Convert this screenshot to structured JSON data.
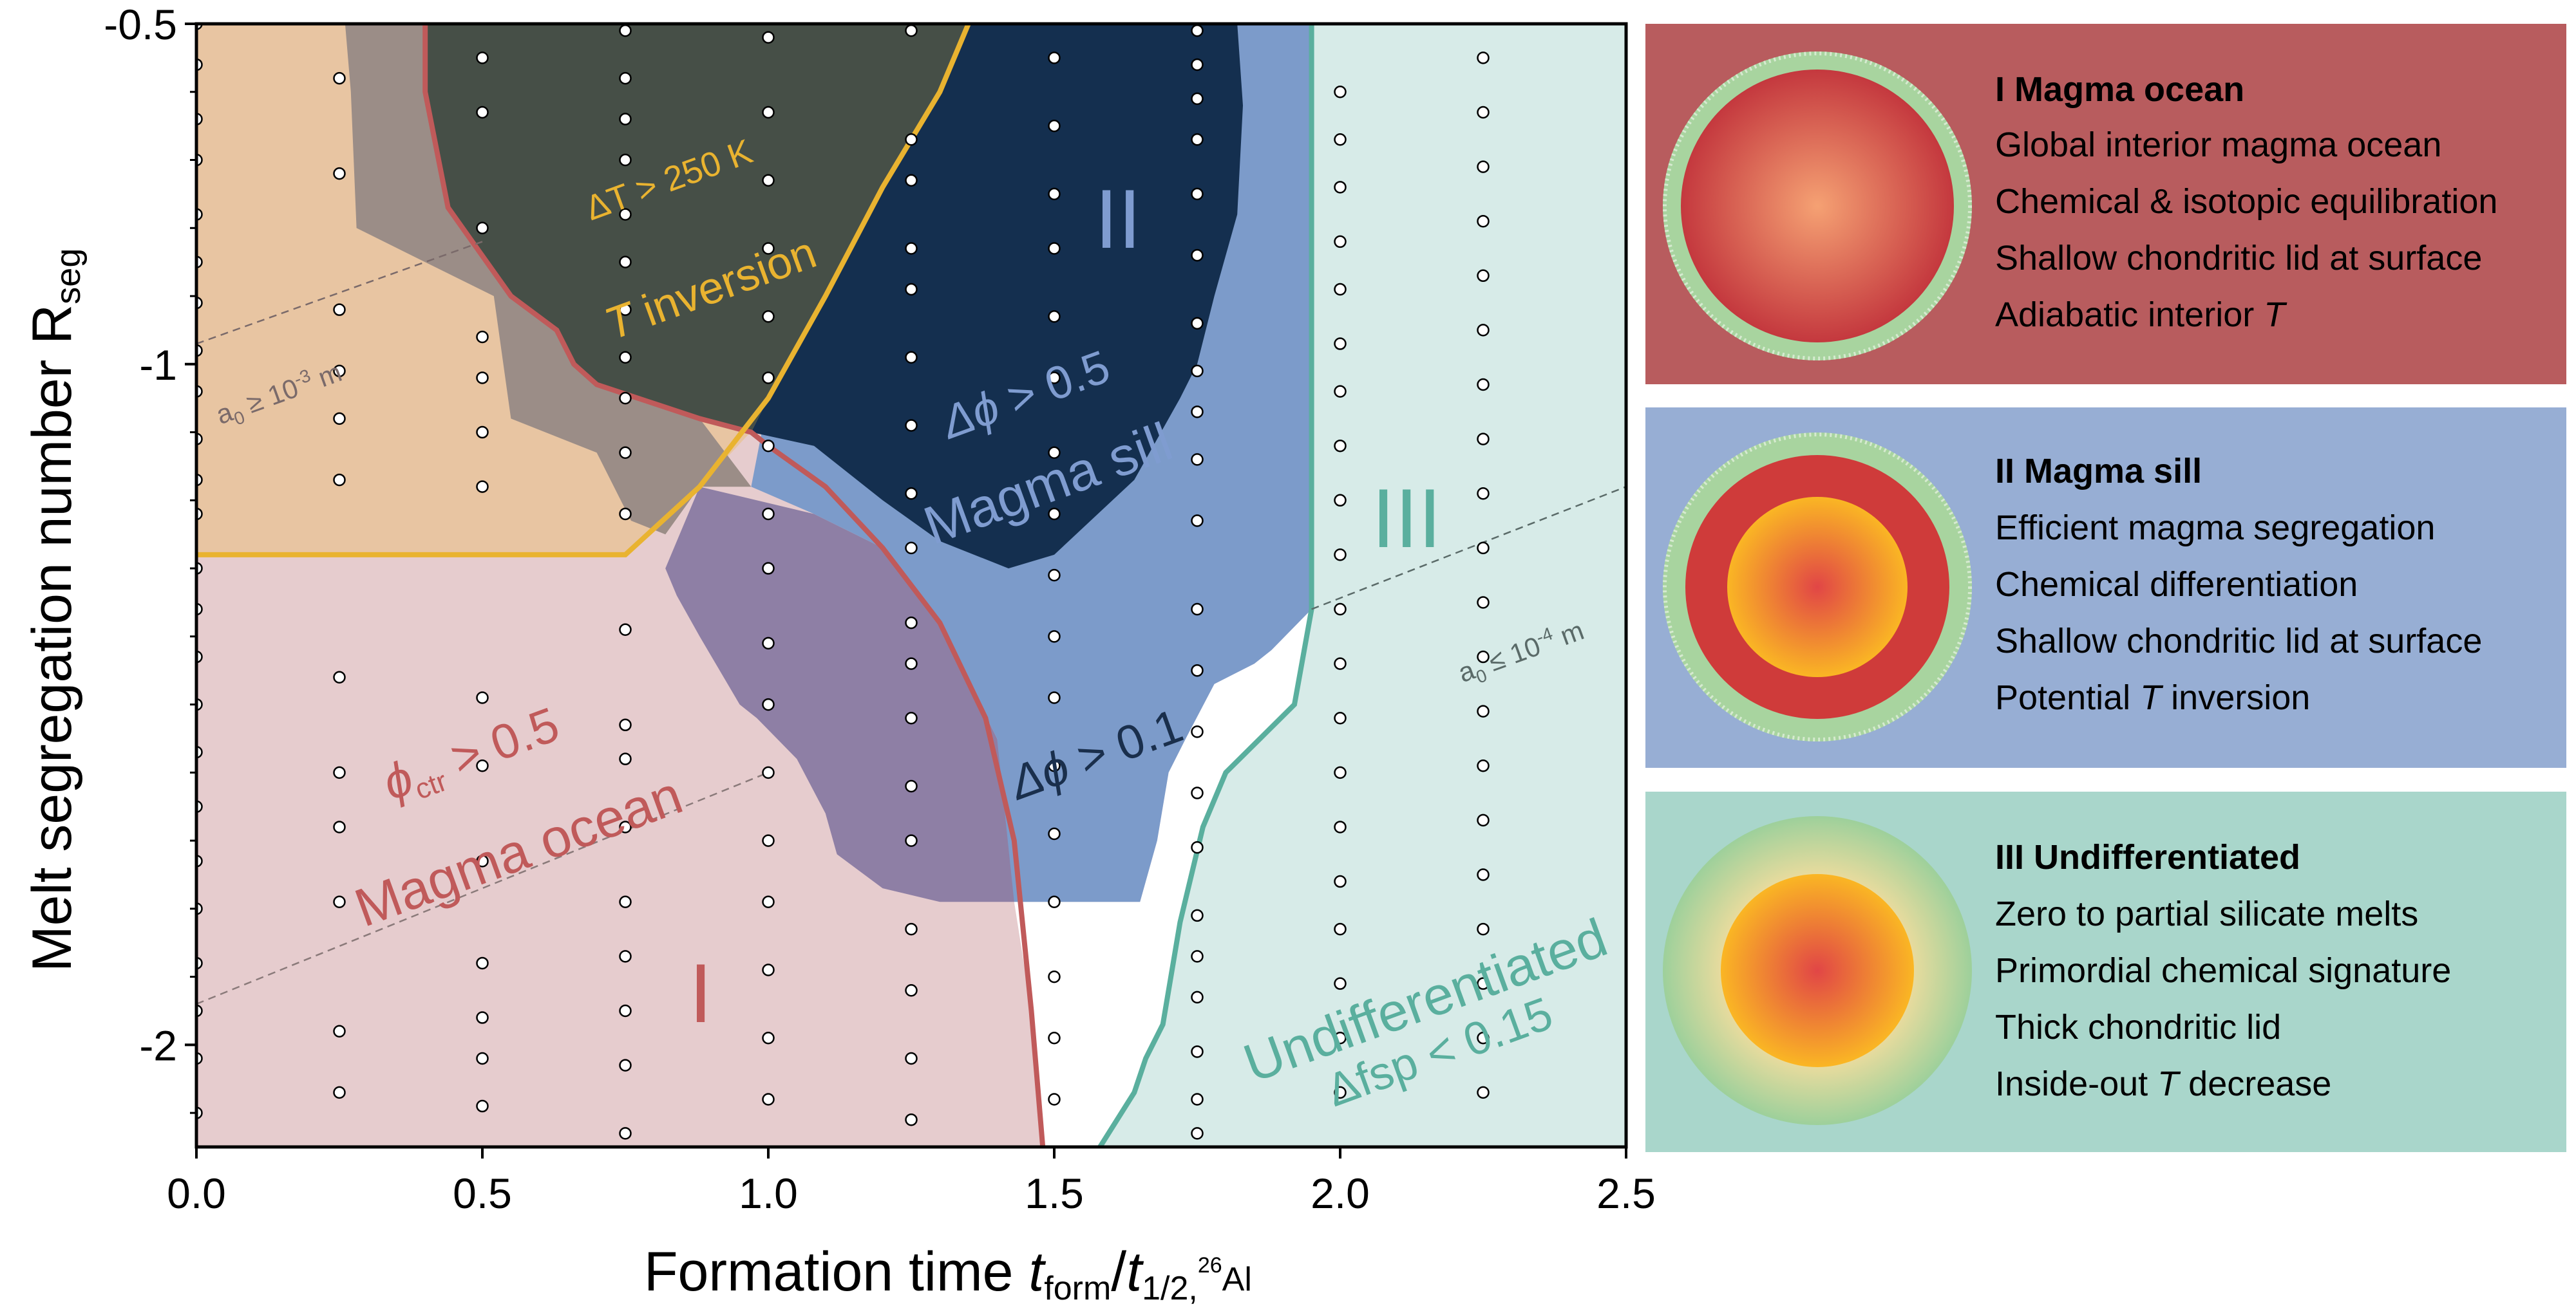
{
  "chart_data": {
    "type": "scatter",
    "x_axis": {
      "label_main": "Formation time ",
      "label_var": "t",
      "label_sub1": "form",
      "label_sep": "/",
      "label_var2": "t",
      "label_sub2": "1/2,",
      "label_sup2": "26",
      "label_sub3": "Al",
      "range": [
        0,
        2.5
      ],
      "ticks": [
        0.0,
        0.5,
        1.0,
        1.5,
        2.0,
        2.5
      ],
      "tick_labels": [
        "0.0",
        "0.5",
        "1.0",
        "1.5",
        "2.0",
        "2.5"
      ]
    },
    "y_axis": {
      "label": "Melt segregation number R",
      "label_sub": "seg",
      "range": [
        -2.15,
        -0.5
      ],
      "ticks": [
        -0.5,
        -1,
        -2
      ],
      "tick_labels": [
        "-0.5",
        "-1",
        "-2"
      ]
    },
    "series": [
      {
        "points": [
          [
            0.0,
            -0.5
          ],
          [
            0.0,
            -0.56
          ],
          [
            0.0,
            -0.64
          ],
          [
            0.0,
            -0.7
          ],
          [
            0.0,
            -0.78
          ],
          [
            0.0,
            -0.85
          ],
          [
            0.0,
            -0.91
          ],
          [
            0.0,
            -0.98
          ],
          [
            0.0,
            -1.04
          ],
          [
            0.0,
            -1.11
          ],
          [
            0.0,
            -1.17
          ],
          [
            0.0,
            -1.22
          ],
          [
            0.0,
            -1.3
          ],
          [
            0.0,
            -1.36
          ],
          [
            0.0,
            -1.43
          ],
          [
            0.0,
            -1.5
          ],
          [
            0.0,
            -1.57
          ],
          [
            0.0,
            -1.65
          ],
          [
            0.0,
            -1.73
          ],
          [
            0.0,
            -1.8
          ],
          [
            0.0,
            -1.88
          ],
          [
            0.0,
            -1.95
          ],
          [
            0.0,
            -2.02
          ],
          [
            0.0,
            -2.1
          ],
          [
            0.25,
            -0.58
          ],
          [
            0.25,
            -0.72
          ],
          [
            0.25,
            -0.92
          ],
          [
            0.25,
            -1.01
          ],
          [
            0.25,
            -1.08
          ],
          [
            0.25,
            -1.17
          ],
          [
            0.25,
            -1.46
          ],
          [
            0.25,
            -1.6
          ],
          [
            0.25,
            -1.68
          ],
          [
            0.25,
            -1.79
          ],
          [
            0.25,
            -1.98
          ],
          [
            0.25,
            -2.07
          ],
          [
            0.5,
            -0.55
          ],
          [
            0.5,
            -0.63
          ],
          [
            0.5,
            -0.8
          ],
          [
            0.5,
            -0.96
          ],
          [
            0.5,
            -1.02
          ],
          [
            0.5,
            -1.1
          ],
          [
            0.5,
            -1.18
          ],
          [
            0.5,
            -1.49
          ],
          [
            0.5,
            -1.59
          ],
          [
            0.5,
            -1.73
          ],
          [
            0.5,
            -1.88
          ],
          [
            0.5,
            -1.96
          ],
          [
            0.5,
            -2.02
          ],
          [
            0.5,
            -2.09
          ],
          [
            0.75,
            -0.51
          ],
          [
            0.75,
            -0.58
          ],
          [
            0.75,
            -0.64
          ],
          [
            0.75,
            -0.7
          ],
          [
            0.75,
            -0.78
          ],
          [
            0.75,
            -0.85
          ],
          [
            0.75,
            -0.92
          ],
          [
            0.75,
            -0.99
          ],
          [
            0.75,
            -1.05
          ],
          [
            0.75,
            -1.13
          ],
          [
            0.75,
            -1.22
          ],
          [
            0.75,
            -1.39
          ],
          [
            0.75,
            -1.53
          ],
          [
            0.75,
            -1.58
          ],
          [
            0.75,
            -1.68
          ],
          [
            0.75,
            -1.79
          ],
          [
            0.75,
            -1.87
          ],
          [
            0.75,
            -1.95
          ],
          [
            0.75,
            -2.03
          ],
          [
            0.75,
            -2.13
          ],
          [
            1.0,
            -0.52
          ],
          [
            1.0,
            -0.63
          ],
          [
            1.0,
            -0.73
          ],
          [
            1.0,
            -0.83
          ],
          [
            1.0,
            -0.93
          ],
          [
            1.0,
            -1.02
          ],
          [
            1.0,
            -1.12
          ],
          [
            1.0,
            -1.22
          ],
          [
            1.0,
            -1.3
          ],
          [
            1.0,
            -1.41
          ],
          [
            1.0,
            -1.5
          ],
          [
            1.0,
            -1.6
          ],
          [
            1.0,
            -1.7
          ],
          [
            1.0,
            -1.79
          ],
          [
            1.0,
            -1.89
          ],
          [
            1.0,
            -1.99
          ],
          [
            1.0,
            -2.08
          ],
          [
            1.25,
            -0.51
          ],
          [
            1.25,
            -0.67
          ],
          [
            1.25,
            -0.73
          ],
          [
            1.25,
            -0.83
          ],
          [
            1.25,
            -0.89
          ],
          [
            1.25,
            -0.99
          ],
          [
            1.25,
            -1.09
          ],
          [
            1.25,
            -1.19
          ],
          [
            1.25,
            -1.27
          ],
          [
            1.25,
            -1.38
          ],
          [
            1.25,
            -1.44
          ],
          [
            1.25,
            -1.52
          ],
          [
            1.25,
            -1.62
          ],
          [
            1.25,
            -1.7
          ],
          [
            1.25,
            -1.83
          ],
          [
            1.25,
            -1.92
          ],
          [
            1.25,
            -2.02
          ],
          [
            1.25,
            -2.11
          ],
          [
            1.5,
            -0.55
          ],
          [
            1.5,
            -0.65
          ],
          [
            1.5,
            -0.75
          ],
          [
            1.5,
            -0.83
          ],
          [
            1.5,
            -0.93
          ],
          [
            1.5,
            -1.02
          ],
          [
            1.5,
            -1.13
          ],
          [
            1.5,
            -1.22
          ],
          [
            1.5,
            -1.31
          ],
          [
            1.5,
            -1.4
          ],
          [
            1.5,
            -1.49
          ],
          [
            1.5,
            -1.59
          ],
          [
            1.5,
            -1.69
          ],
          [
            1.5,
            -1.79
          ],
          [
            1.5,
            -1.9
          ],
          [
            1.5,
            -1.99
          ],
          [
            1.5,
            -2.08
          ],
          [
            1.75,
            -0.51
          ],
          [
            1.75,
            -0.56
          ],
          [
            1.75,
            -0.61
          ],
          [
            1.75,
            -0.67
          ],
          [
            1.75,
            -0.75
          ],
          [
            1.75,
            -0.84
          ],
          [
            1.75,
            -0.94
          ],
          [
            1.75,
            -1.01
          ],
          [
            1.75,
            -1.07
          ],
          [
            1.75,
            -1.14
          ],
          [
            1.75,
            -1.23
          ],
          [
            1.75,
            -1.36
          ],
          [
            1.75,
            -1.45
          ],
          [
            1.75,
            -1.54
          ],
          [
            1.75,
            -1.63
          ],
          [
            1.75,
            -1.71
          ],
          [
            1.75,
            -1.81
          ],
          [
            1.75,
            -1.87
          ],
          [
            1.75,
            -1.93
          ],
          [
            1.75,
            -2.01
          ],
          [
            1.75,
            -2.08
          ],
          [
            1.75,
            -2.13
          ],
          [
            2.0,
            -0.6
          ],
          [
            2.0,
            -0.67
          ],
          [
            2.0,
            -0.74
          ],
          [
            2.0,
            -0.82
          ],
          [
            2.0,
            -0.89
          ],
          [
            2.0,
            -0.97
          ],
          [
            2.0,
            -1.04
          ],
          [
            2.0,
            -1.12
          ],
          [
            2.0,
            -1.2
          ],
          [
            2.0,
            -1.28
          ],
          [
            2.0,
            -1.36
          ],
          [
            2.0,
            -1.44
          ],
          [
            2.0,
            -1.52
          ],
          [
            2.0,
            -1.6
          ],
          [
            2.0,
            -1.68
          ],
          [
            2.0,
            -1.76
          ],
          [
            2.0,
            -1.83
          ],
          [
            2.0,
            -1.91
          ],
          [
            2.0,
            -1.99
          ],
          [
            2.0,
            -2.07
          ],
          [
            2.25,
            -0.55
          ],
          [
            2.25,
            -0.63
          ],
          [
            2.25,
            -0.71
          ],
          [
            2.25,
            -0.79
          ],
          [
            2.25,
            -0.87
          ],
          [
            2.25,
            -0.95
          ],
          [
            2.25,
            -1.03
          ],
          [
            2.25,
            -1.11
          ],
          [
            2.25,
            -1.19
          ],
          [
            2.25,
            -1.27
          ],
          [
            2.25,
            -1.35
          ],
          [
            2.25,
            -1.43
          ],
          [
            2.25,
            -1.51
          ],
          [
            2.25,
            -1.59
          ],
          [
            2.25,
            -1.67
          ],
          [
            2.25,
            -1.75
          ],
          [
            2.25,
            -1.83
          ],
          [
            2.25,
            -1.91
          ],
          [
            2.25,
            -1.99
          ],
          [
            2.25,
            -2.07
          ]
        ]
      }
    ],
    "regions": {
      "magma_ocean_top": {
        "color": "#e8c5a2"
      },
      "magma_ocean_bottom": {
        "color": "#e6ccce"
      },
      "sill_purple": {
        "color": "#8e7fa5"
      },
      "grey_band": {
        "color": "#9b8d87"
      },
      "inversion_zone": {
        "color": "#464f47"
      },
      "sill_light": {
        "color": "#7c9bca"
      },
      "sill_dark": {
        "color": "#142f4f"
      },
      "undifferentiated": {
        "color": "#d7ebe8"
      }
    },
    "region_labels": {
      "deltaT": "ΔT > 250 K",
      "tinv_T": "T",
      "tinv_rest": " inversion",
      "roman2": "II",
      "dphi05_sym": "Δϕ",
      "dphi05_rest": " > 0.5",
      "sill": "Magma sill",
      "roman3": "III",
      "phi_sym": "ϕ",
      "phi_sub": "ctr",
      "phi_rest": " > 0.5",
      "ocean": "Magma ocean",
      "dphi01_sym": "Δϕ",
      "dphi01_rest": " > 0.1",
      "roman1": "I",
      "undiff": "Undifferentiated",
      "dfsp": "Δfsp < 0.15"
    },
    "contour_labels": {
      "a_upper_pre": "a",
      "a_upper_sub": "0",
      "a_upper_mid": " ≥ 10",
      "a_upper_sup": "-3",
      "a_upper_post": " m",
      "a_lower_pre": "a",
      "a_lower_sub": "0",
      "a_lower_mid": " ≤ 10",
      "a_lower_sup": "-4",
      "a_lower_post": " m"
    },
    "colors": {
      "ocean_line": "#c05a5a",
      "inversion_line": "#e9b330",
      "undiff_line": "#5aaf9e",
      "sill_label": "#7f9cd0",
      "dark_label": "#1a2f4c"
    }
  },
  "panels": [
    {
      "title": "I Magma ocean",
      "lines": [
        "Global interior magma ocean",
        "Chemical & isotopic equilibration",
        "Shallow chondritic lid at surface"
      ],
      "last_pre": "Adiabatic interior ",
      "last_ital": "T",
      "last_post": "",
      "bg": "#b85c5e"
    },
    {
      "title": "II Magma sill",
      "lines": [
        "Efficient magma segregation",
        "Chemical differentiation",
        "Shallow chondritic lid at surface"
      ],
      "last_pre": "Potential ",
      "last_ital": "T",
      "last_post": " inversion",
      "bg": "#97aed4"
    },
    {
      "title": "III Undifferentiated",
      "lines": [
        "Zero to partial silicate melts",
        "Primordial chemical signature",
        "Thick chondritic lid"
      ],
      "last_pre": "Inside-out ",
      "last_ital": "T",
      "last_post": " decrease",
      "bg": "#a9d6cb"
    }
  ]
}
